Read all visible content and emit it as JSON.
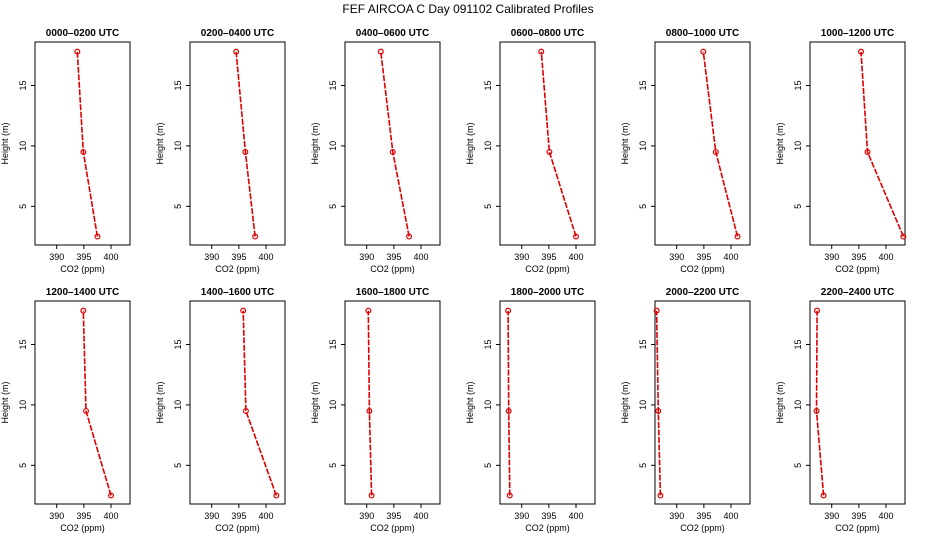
{
  "figure_title": "FEF  AIRCOA C  Day 091102  Calibrated Profiles",
  "colors": {
    "line": "#dd0000",
    "marker": "#dd0000",
    "axis": "#000000"
  },
  "chart_data": [
    {
      "type": "line",
      "title": "0000–0200 UTC",
      "xlabel": "CO2 (ppm)",
      "ylabel": "Height (m)",
      "xlim": [
        386,
        403.5
      ],
      "ylim": [
        1.8,
        18.6
      ],
      "xticks": [
        390,
        395,
        400
      ],
      "yticks": [
        5,
        10,
        15
      ],
      "x": [
        397.5,
        394.9,
        393.8
      ],
      "y": [
        2.5,
        9.5,
        17.8
      ]
    },
    {
      "type": "line",
      "title": "0200–0400 UTC",
      "xlabel": "CO2 (ppm)",
      "ylabel": "Height (m)",
      "xlim": [
        386,
        403.5
      ],
      "ylim": [
        1.8,
        18.6
      ],
      "xticks": [
        390,
        395,
        400
      ],
      "yticks": [
        5,
        10,
        15
      ],
      "x": [
        398.0,
        396.2,
        394.5
      ],
      "y": [
        2.5,
        9.5,
        17.8
      ]
    },
    {
      "type": "line",
      "title": "0400–0600 UTC",
      "xlabel": "CO2 (ppm)",
      "ylabel": "Height (m)",
      "xlim": [
        386,
        403.5
      ],
      "ylim": [
        1.8,
        18.6
      ],
      "xticks": [
        390,
        395,
        400
      ],
      "yticks": [
        5,
        10,
        15
      ],
      "x": [
        397.8,
        394.8,
        392.6
      ],
      "y": [
        2.5,
        9.5,
        17.8
      ]
    },
    {
      "type": "line",
      "title": "0600–0800 UTC",
      "xlabel": "CO2 (ppm)",
      "ylabel": "Height (m)",
      "xlim": [
        386,
        403.5
      ],
      "ylim": [
        1.8,
        18.6
      ],
      "xticks": [
        390,
        395,
        400
      ],
      "yticks": [
        5,
        10,
        15
      ],
      "x": [
        400.0,
        395.1,
        393.6
      ],
      "y": [
        2.5,
        9.5,
        17.8
      ]
    },
    {
      "type": "line",
      "title": "0800–1000 UTC",
      "xlabel": "CO2 (ppm)",
      "ylabel": "Height (m)",
      "xlim": [
        386,
        403.5
      ],
      "ylim": [
        1.8,
        18.6
      ],
      "xticks": [
        390,
        395,
        400
      ],
      "yticks": [
        5,
        10,
        15
      ],
      "x": [
        401.2,
        397.2,
        394.9
      ],
      "y": [
        2.5,
        9.5,
        17.8
      ]
    },
    {
      "type": "line",
      "title": "1000–1200 UTC",
      "xlabel": "CO2 (ppm)",
      "ylabel": "Height (m)",
      "xlim": [
        386,
        403.5
      ],
      "ylim": [
        1.8,
        18.6
      ],
      "xticks": [
        390,
        395,
        400
      ],
      "yticks": [
        5,
        10,
        15
      ],
      "x": [
        403.2,
        396.6,
        395.4
      ],
      "y": [
        2.5,
        9.5,
        17.8
      ]
    },
    {
      "type": "line",
      "title": "1200–1400 UTC",
      "xlabel": "CO2 (ppm)",
      "ylabel": "Height (m)",
      "xlim": [
        386,
        403.5
      ],
      "ylim": [
        1.8,
        18.6
      ],
      "xticks": [
        390,
        395,
        400
      ],
      "yticks": [
        5,
        10,
        15
      ],
      "x": [
        400.0,
        395.4,
        394.9
      ],
      "y": [
        2.5,
        9.5,
        17.8
      ]
    },
    {
      "type": "line",
      "title": "1400–1600 UTC",
      "xlabel": "CO2 (ppm)",
      "ylabel": "Height (m)",
      "xlim": [
        386,
        403.5
      ],
      "ylim": [
        1.8,
        18.6
      ],
      "xticks": [
        390,
        395,
        400
      ],
      "yticks": [
        5,
        10,
        15
      ],
      "x": [
        401.9,
        396.3,
        395.8
      ],
      "y": [
        2.5,
        9.5,
        17.8
      ]
    },
    {
      "type": "line",
      "title": "1600–1800 UTC",
      "xlabel": "CO2 (ppm)",
      "ylabel": "Height (m)",
      "xlim": [
        386,
        403.5
      ],
      "ylim": [
        1.8,
        18.6
      ],
      "xticks": [
        390,
        395,
        400
      ],
      "yticks": [
        5,
        10,
        15
      ],
      "x": [
        390.9,
        390.5,
        390.3
      ],
      "y": [
        2.5,
        9.5,
        17.8
      ]
    },
    {
      "type": "line",
      "title": "1800–2000 UTC",
      "xlabel": "CO2 (ppm)",
      "ylabel": "Height (m)",
      "xlim": [
        386,
        403.5
      ],
      "ylim": [
        1.8,
        18.6
      ],
      "xticks": [
        390,
        395,
        400
      ],
      "yticks": [
        5,
        10,
        15
      ],
      "x": [
        387.8,
        387.6,
        387.5
      ],
      "y": [
        2.5,
        9.5,
        17.8
      ]
    },
    {
      "type": "line",
      "title": "2000–2200 UTC",
      "xlabel": "CO2 (ppm)",
      "ylabel": "Height (m)",
      "xlim": [
        386,
        403.5
      ],
      "ylim": [
        1.8,
        18.6
      ],
      "xticks": [
        390,
        395,
        400
      ],
      "yticks": [
        5,
        10,
        15
      ],
      "x": [
        387.0,
        386.6,
        386.3
      ],
      "y": [
        2.5,
        9.5,
        17.8
      ]
    },
    {
      "type": "line",
      "title": "2200–2400 UTC",
      "xlabel": "CO2 (ppm)",
      "ylabel": "Height (m)",
      "xlim": [
        386,
        403.5
      ],
      "ylim": [
        1.8,
        18.6
      ],
      "xticks": [
        390,
        395,
        400
      ],
      "yticks": [
        5,
        10,
        15
      ],
      "x": [
        388.5,
        387.2,
        387.3
      ],
      "y": [
        2.5,
        9.5,
        17.8
      ]
    }
  ]
}
